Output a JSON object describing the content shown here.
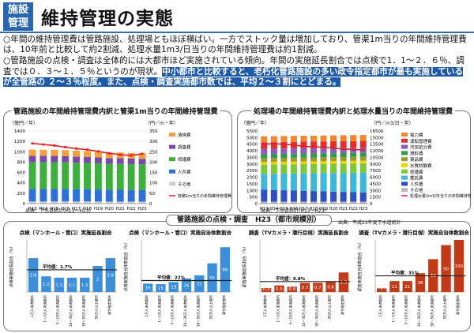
{
  "header": {
    "badge_line1": "施設",
    "badge_line2": "管理",
    "title": "維持管理の実態"
  },
  "bullets": {
    "b1": "○年間の維持管理費は管路施設、処理場ともほぼ横ばい。一方でストック量は増加しており、管渠1m当りの年間維持管理費は、10年前と比較して約2割減、処理水量1m3/日当りの年間維持管理費は約1割減。",
    "b2a": "○管路施設の点検・調査は全体的には大都市ほど実施されている傾向。年間の実施延長割合では点検で1．1～２．６％、調査では０．３～１．５％というのが現状。",
    "b2b": "中小都市と比較すると、老朽化管路施設の多い政令指定都市が最も実施しているが全管路の ２～３％程度。",
    "b2c": "また、点検・調査実施都市数では、平均２～３割にとどまる。"
  },
  "chart1": {
    "title": "管路施設の年間維持管理費内訳と管渠1m当りの年間維持管理費",
    "unit_left": "（億円／年）",
    "unit_right": "（円／m・年）",
    "source": "出典：下水道統計(H13～H23)"
  },
  "chart2": {
    "title": "処理場の年間維持管理費内訳と処理水量当りの年間維持管理費",
    "unit_left": "（億円／年）",
    "unit_right": "（円／m3/日・年）",
    "source": "出典：下水道統計(H13～H23)"
  },
  "bottom": {
    "heading": "管路施設の点検・調査　H23（都市規模別）",
    "source": "出典：平成23年度下水道統計"
  },
  "chart_data": [
    {
      "type": "bar",
      "stacked": true,
      "categories": [
        "H13",
        "H14",
        "H15",
        "H16",
        "H17",
        "H18",
        "H19",
        "H20",
        "H21",
        "H22",
        "H23"
      ],
      "series": [
        {
          "name": "その他",
          "values": [
            40,
            40,
            42,
            42,
            40,
            42,
            40,
            38,
            38,
            38,
            38
          ]
        },
        {
          "name": "人件費",
          "values": [
            240,
            240,
            240,
            238,
            236,
            234,
            232,
            230,
            228,
            226,
            224
          ]
        },
        {
          "name": "修繕費",
          "values": [
            520,
            520,
            518,
            516,
            512,
            510,
            506,
            500,
            498,
            496,
            494
          ]
        },
        {
          "name": "調査費",
          "values": [
            120,
            120,
            120,
            118,
            116,
            114,
            112,
            110,
            110,
            108,
            108
          ]
        },
        {
          "name": "清掃費",
          "values": [
            120,
            118,
            118,
            116,
            116,
            114,
            112,
            110,
            110,
            108,
            108
          ]
        }
      ],
      "line": {
        "name": "管路1m当りの年間維持管理費",
        "values": [
          290,
          285,
          280,
          272,
          265,
          260,
          252,
          242,
          236,
          232,
          240
        ]
      },
      "ylim": [
        0,
        1400
      ],
      "y2lim": [
        0,
        350
      ],
      "yticks": [
        0,
        200,
        400,
        600,
        800,
        1000,
        1200,
        1400
      ],
      "y2ticks": [
        0,
        50,
        100,
        150,
        200,
        250,
        300,
        350
      ]
    },
    {
      "type": "bar",
      "stacked": true,
      "categories": [
        "H13",
        "H14",
        "H15",
        "H16",
        "H17",
        "H18",
        "H19",
        "H20",
        "H21",
        "H22",
        "H23"
      ],
      "series": [
        {
          "name": "その他",
          "values": [
            150,
            150,
            150,
            150,
            150,
            150,
            150,
            150,
            150,
            150,
            150
          ]
        },
        {
          "name": "人件費",
          "values": [
            900,
            880,
            860,
            840,
            820,
            800,
            780,
            760,
            740,
            720,
            700
          ]
        },
        {
          "name": "委託費",
          "values": [
            1200,
            1230,
            1260,
            1290,
            1320,
            1350,
            1380,
            1410,
            1440,
            1470,
            1500
          ]
        },
        {
          "name": "修繕費",
          "values": [
            700,
            700,
            700,
            700,
            700,
            700,
            700,
            700,
            700,
            700,
            700
          ]
        },
        {
          "name": "水質試験費",
          "values": [
            200,
            200,
            200,
            200,
            200,
            200,
            200,
            200,
            200,
            200,
            200
          ]
        },
        {
          "name": "薬品費",
          "values": [
            300,
            300,
            300,
            300,
            300,
            300,
            300,
            300,
            300,
            300,
            300
          ]
        },
        {
          "name": "燃料費",
          "values": [
            300,
            300,
            300,
            300,
            300,
            300,
            300,
            300,
            300,
            300,
            300
          ]
        },
        {
          "name": "汚泥処分費",
          "values": [
            400,
            400,
            400,
            400,
            400,
            400,
            400,
            400,
            400,
            400,
            400
          ]
        },
        {
          "name": "運転管理費",
          "values": [
            500,
            500,
            500,
            500,
            500,
            500,
            500,
            500,
            500,
            500,
            500
          ]
        },
        {
          "name": "電力費",
          "values": [
            450,
            450,
            450,
            450,
            450,
            450,
            450,
            450,
            450,
            450,
            450
          ]
        }
      ],
      "line": {
        "name": "処理水量1m3/日当りの年間維持管理費",
        "values": [
          13500,
          13600,
          13500,
          13300,
          13000,
          12900,
          12800,
          12600,
          12400,
          12300,
          12200
        ]
      },
      "ylim": [
        0,
        5500
      ],
      "y2lim": [
        0,
        16500
      ],
      "yticks": [
        0,
        500,
        1000,
        1500,
        2000,
        2500,
        3000,
        3500,
        4000,
        4500,
        5000,
        5500
      ],
      "y2ticks": [
        0,
        1500,
        3000,
        4500,
        6000,
        7500,
        9000,
        10500,
        12000,
        13500,
        15000,
        16500
      ]
    },
    {
      "type": "bar",
      "title": "点検（マンホール・管口）実施延長割合",
      "ylabel": "点検実施延長割合（%）",
      "categories": [
        "1万人未満都市",
        "1～5万人未満都市",
        "5～10万人未満都市",
        "10～30万人未満都市",
        "30～50万人未満都市",
        "50万人以上都市",
        "政令指定都市"
      ],
      "values": [
        2.6,
        1.2,
        1.1,
        1.1,
        1.1,
        2.0,
        2.6
      ],
      "average": 1.7,
      "average_label": "平均値：1.7%",
      "ylim": [
        0,
        4
      ]
    },
    {
      "type": "bar",
      "title": "点検（マンホール・管口）実施自治体数割合",
      "ylabel": "点検実施自治体数割合（%）",
      "categories": [
        "1万人未満都市",
        "1～5万人未満都市",
        "5～10万人未満都市",
        "10～30万人未満都市",
        "30～50万人未満都市",
        "50万人以上都市",
        "政令指定都市"
      ],
      "values": [
        16,
        15,
        19,
        26,
        32,
        55,
        86
      ],
      "average": 22,
      "average_label": "平均値：22%",
      "ylim": [
        0,
        100
      ]
    },
    {
      "type": "bar",
      "title": "調査（TVカメラ・潜行目視）実施延長割合",
      "ylabel": "調査実施延長割合（%）",
      "categories": [
        "1万人未満都市",
        "1～5万人未満都市",
        "5～10万人未満都市",
        "10～30万人未満都市",
        "30～50万人未満都市",
        "50万人以上都市",
        "政令指定都市"
      ],
      "values": [
        0.3,
        0.5,
        0.4,
        0.7,
        0.7,
        0.8,
        1.5
      ],
      "average": 0.8,
      "average_label": "平均値：0.8%",
      "ylim": [
        0,
        4
      ]
    },
    {
      "type": "bar",
      "title": "調査（TVカメラ・潜行目視）実施自治体数割合",
      "ylabel": "調査実施自治体数割合（%）",
      "categories": [
        "1万人未満都市",
        "1～5万人未満都市",
        "5～10万人未満都市",
        "10～30万人未満都市",
        "30～50万人未満都市",
        "50万人以上都市",
        "政令指定都市"
      ],
      "values": [
        7,
        21,
        21,
        36,
        63,
        90,
        100
      ],
      "average": 31,
      "average_label": "平均値：31%",
      "ylim": [
        0,
        100
      ]
    }
  ],
  "colors": {
    "blue": "#2a66ad",
    "bar_blue": "#3d8fd9",
    "bar_red": "#c23b18",
    "line_red": "#e0202a",
    "average_line": "#222"
  }
}
